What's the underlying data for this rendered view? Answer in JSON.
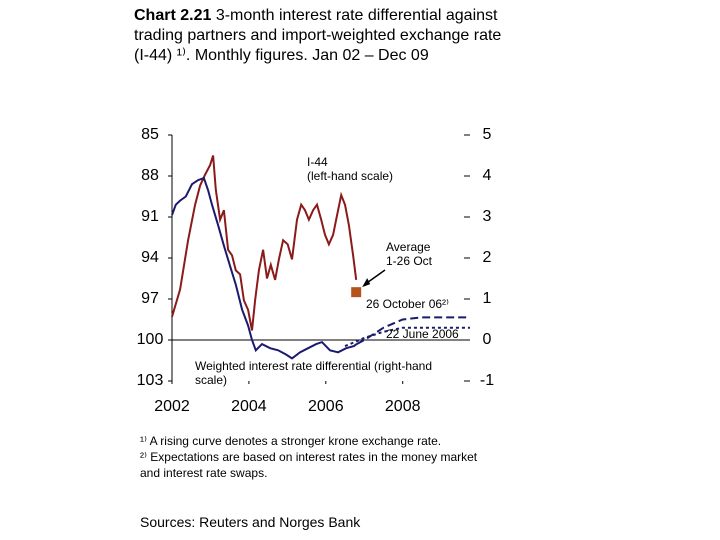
{
  "chart_data": {
    "type": "line",
    "label": "Chart 2.21",
    "title": "3-month interest rate differential against trading partners and import-weighted exchange rate (I-44) ¹⁾. Monthly figures. Jan 02 – Dec 09",
    "xlim": [
      2002,
      2009.75
    ],
    "xticks": [
      2002,
      2004,
      2006,
      2008
    ],
    "ylim": [
      103,
      85
    ],
    "yticks": [
      85,
      88,
      91,
      94,
      97,
      100,
      103
    ],
    "y2lim": [
      -1,
      5
    ],
    "y2ticks": [
      5,
      4,
      3,
      2,
      1,
      0,
      -1
    ],
    "series": [
      {
        "name": "I-44\n(left-hand scale)",
        "color": "#8b1a1a",
        "axis": "y",
        "style": "solid",
        "x": [
          2002.0,
          2002.21,
          2002.42,
          2002.6,
          2002.73,
          2002.86,
          2002.99,
          2003.07,
          2003.14,
          2003.25,
          2003.35,
          2003.46,
          2003.56,
          2003.66,
          2003.77,
          2003.87,
          2003.98,
          2004.08,
          2004.16,
          2004.26,
          2004.37,
          2004.47,
          2004.57,
          2004.68,
          2004.78,
          2004.89,
          2005.01,
          2005.12,
          2005.25,
          2005.36,
          2005.46,
          2005.56,
          2005.67,
          2005.77,
          2005.88,
          2005.98,
          2006.08,
          2006.19,
          2006.29,
          2006.4,
          2006.5,
          2006.6,
          2006.71,
          2006.79
        ],
        "values": [
          98.3,
          96.3,
          92.7,
          90.1,
          88.7,
          87.9,
          87.2,
          86.5,
          89.0,
          91.2,
          90.5,
          93.4,
          93.8,
          94.9,
          95.2,
          97.1,
          97.8,
          99.3,
          97.1,
          94.9,
          93.4,
          95.5,
          94.5,
          95.6,
          94.1,
          92.7,
          93.0,
          94.1,
          91.2,
          90.1,
          90.5,
          91.2,
          90.5,
          90.1,
          91.2,
          92.3,
          93.0,
          92.3,
          90.9,
          89.4,
          90.1,
          91.6,
          93.8,
          95.6
        ]
      },
      {
        "name": "Weighted  interest rate differential (right-hand scale)",
        "color": "#1a1a6e",
        "axis": "y2",
        "style": "solid",
        "x": [
          2002.0,
          2002.1,
          2002.21,
          2002.36,
          2002.52,
          2002.68,
          2002.83,
          2002.94,
          2003.04,
          2003.2,
          2003.35,
          2003.51,
          2003.66,
          2003.82,
          2003.98,
          2004.08,
          2004.18,
          2004.34,
          2004.55,
          2004.76,
          2004.96,
          2005.12,
          2005.33,
          2005.54,
          2005.75,
          2005.9,
          2006.11,
          2006.32,
          2006.53,
          2006.73,
          2006.8
        ],
        "values": [
          3.05,
          3.3,
          3.4,
          3.5,
          3.8,
          3.9,
          3.95,
          3.65,
          3.3,
          2.8,
          2.3,
          1.8,
          1.35,
          0.75,
          0.35,
          0.0,
          -0.25,
          -0.1,
          -0.2,
          -0.25,
          -0.35,
          -0.45,
          -0.3,
          -0.2,
          -0.1,
          -0.05,
          -0.25,
          -0.3,
          -0.2,
          -0.15,
          -0.1
        ]
      },
      {
        "name": "26 October 06²⁾",
        "color": "#1a1a6e",
        "axis": "y2",
        "style": "dashed",
        "x": [
          2006.8,
          2007.0,
          2007.25,
          2007.5,
          2007.75,
          2008.0,
          2008.5,
          2009.0,
          2009.75
        ],
        "values": [
          -0.1,
          0.0,
          0.15,
          0.3,
          0.4,
          0.5,
          0.55,
          0.55,
          0.55
        ]
      },
      {
        "name": "22 June 2006",
        "color": "#1a1a6e",
        "axis": "y2",
        "style": "dotted",
        "x": [
          2006.5,
          2006.75,
          2007.0,
          2007.5,
          2008.0,
          2008.5,
          2009.0,
          2009.75
        ],
        "values": [
          -0.15,
          -0.05,
          0.05,
          0.2,
          0.3,
          0.3,
          0.3,
          0.3
        ]
      }
    ],
    "markers": [
      {
        "name": "Average\n1-26 Oct",
        "x": 2006.79,
        "value": 96.5,
        "color": "#b5531c",
        "axis": "y"
      }
    ],
    "footnotes": [
      "¹⁾ A rising curve denotes a stronger krone exchange rate.",
      "²⁾ Expectations are based on interest rates in the money market and interest rate swaps."
    ],
    "source": "Sources: Reuters and Norges Bank"
  }
}
